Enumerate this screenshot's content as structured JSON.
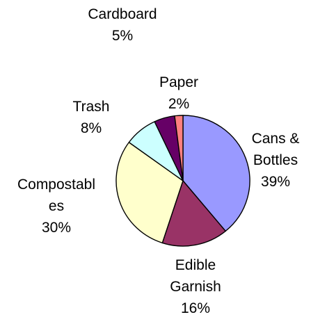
{
  "chart_data": {
    "type": "pie",
    "title": "",
    "slices": [
      {
        "label_lines": [
          "Cans &",
          "Bottles"
        ],
        "label": "Cans & Bottles",
        "value": 39,
        "percent_text": "39%",
        "color": "#9999ff"
      },
      {
        "label_lines": [
          "Edible",
          "Garnish"
        ],
        "label": "Edible Garnish",
        "value": 16,
        "percent_text": "16%",
        "color": "#993366"
      },
      {
        "label_lines": [
          "Compostabl",
          "es"
        ],
        "label": "Compostables",
        "value": 30,
        "percent_text": "30%",
        "color": "#ffffcc"
      },
      {
        "label_lines": [
          "Trash"
        ],
        "label": "Trash",
        "value": 8,
        "percent_text": "8%",
        "color": "#ccffff"
      },
      {
        "label_lines": [
          "Cardboard"
        ],
        "label": "Cardboard",
        "value": 5,
        "percent_text": "5%",
        "color": "#660066"
      },
      {
        "label_lines": [
          "Paper"
        ],
        "label": "Paper",
        "value": 2,
        "percent_text": "2%",
        "color": "#ff8080"
      }
    ],
    "legend": "none",
    "slice_border_color": "#000000"
  }
}
